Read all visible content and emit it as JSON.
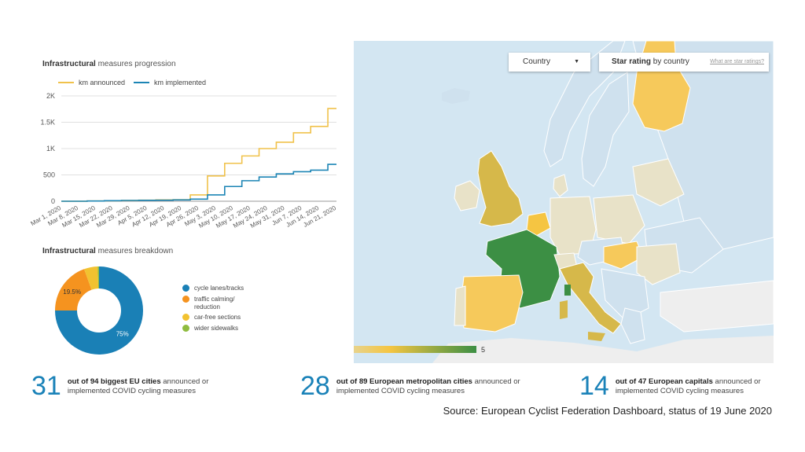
{
  "progression": {
    "title_bold": "Infrastructural",
    "title_rest": " measures progression",
    "legend": [
      {
        "label": "km announced",
        "color": "#f0c24b"
      },
      {
        "label": "km implemented",
        "color": "#1c85b5"
      }
    ]
  },
  "breakdown": {
    "title_bold": "Infrastructural",
    "title_rest": " measures breakdown",
    "legend": [
      {
        "label": "cycle lanes/tracks",
        "color": "#1a80b6"
      },
      {
        "label": "traffic calming/ reduction",
        "color": "#f5931f"
      },
      {
        "label": "car-free sections",
        "color": "#f2c230"
      },
      {
        "label": "wider sidewalks",
        "color": "#8fbc3f"
      }
    ]
  },
  "chart_data": [
    {
      "type": "line",
      "title": "Infrastructural measures progression",
      "x": [
        "Mar 1, 2020",
        "Mar 8, 2020",
        "Mar 15, 2020",
        "Mar 22, 2020",
        "Mar 29, 2020",
        "Apr 5, 2020",
        "Apr 12, 2020",
        "Apr 19, 2020",
        "Apr 26, 2020",
        "May 3, 2020",
        "May 10, 2020",
        "May 17, 2020",
        "May 24, 2020",
        "May 31, 2020",
        "Jun 7, 2020",
        "Jun 14, 2020",
        "Jun 21, 2020"
      ],
      "y_ticks": [
        "0",
        "500",
        "1K",
        "1.5K",
        "2K"
      ],
      "ylim": [
        0,
        2000
      ],
      "grid": true,
      "legend_position": "top-left",
      "series": [
        {
          "name": "km announced",
          "color": "#f0c24b",
          "values": [
            0,
            0,
            5,
            10,
            15,
            20,
            25,
            30,
            120,
            480,
            720,
            860,
            1000,
            1120,
            1300,
            1420,
            1760
          ]
        },
        {
          "name": "km implemented",
          "color": "#1c85b5",
          "values": [
            0,
            0,
            5,
            10,
            15,
            18,
            20,
            25,
            40,
            120,
            280,
            390,
            460,
            520,
            560,
            590,
            700
          ]
        }
      ]
    },
    {
      "type": "pie",
      "title": "Infrastructural measures breakdown",
      "slices": [
        {
          "label": "cycle lanes/tracks",
          "value": 75,
          "display": "75%",
          "color": "#1a80b6"
        },
        {
          "label": "traffic calming/ reduction",
          "value": 19.5,
          "display": "19.5%",
          "color": "#f5931f"
        },
        {
          "label": "car-free sections",
          "value": 5,
          "display": "",
          "color": "#f2c230"
        },
        {
          "label": "wider sidewalks",
          "value": 0.5,
          "display": "",
          "color": "#8fbc3f"
        }
      ]
    }
  ],
  "map": {
    "country_select": "Country",
    "rating_bold": "Star rating",
    "rating_rest": " by country",
    "rating_link": "What are star ratings?",
    "scale_min": "0",
    "scale_max": "5",
    "colors": {
      "water": "#d3e6f2",
      "no_data": "#eeeeee",
      "low": "#e8e2c8",
      "mid": "#f5c542",
      "high": "#3c8f44"
    }
  },
  "stats": [
    {
      "number": "31",
      "bold": "out of 94 biggest EU cities",
      "rest": " announced or implemented COVID cycling measures"
    },
    {
      "number": "28",
      "bold": "out of 89 European metropolitan cities",
      "rest": " announced or implemented COVID cycling measures"
    },
    {
      "number": "14",
      "bold": "out of 47 European capitals",
      "rest": " announced or implemented COVID cycling measures"
    }
  ],
  "source": "Source: European Cyclist Federation Dashboard, status of 19 June 2020"
}
